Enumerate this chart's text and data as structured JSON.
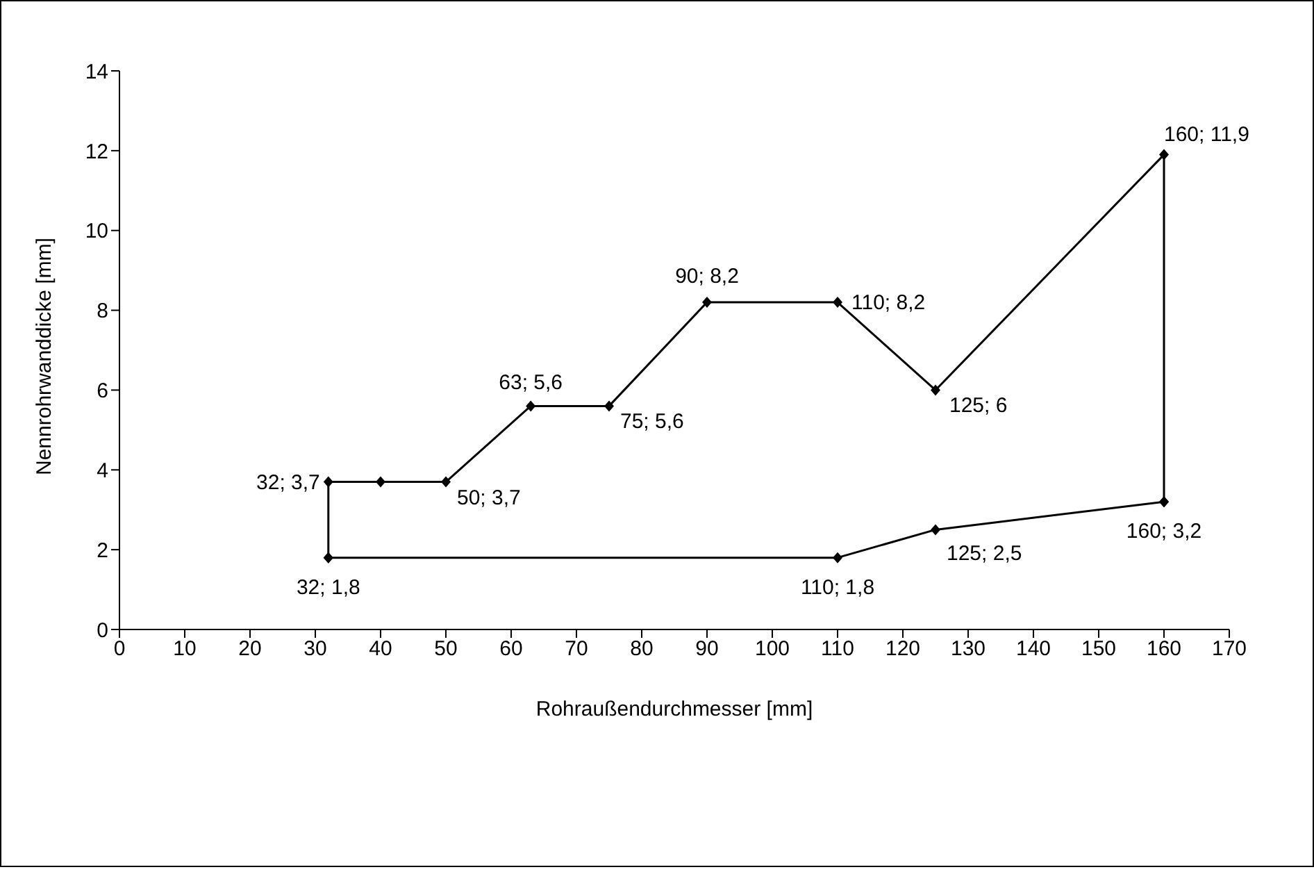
{
  "chart_data": {
    "type": "line",
    "xlabel": "Rohraußendurchmesser [mm]",
    "ylabel": "Nennrohrwanddicke [mm]",
    "marker": "diamond",
    "line_style": "solid",
    "series": [
      {
        "color": "#000000",
        "x": [
          32,
          32,
          40,
          50,
          63,
          75,
          90,
          110,
          125,
          160,
          160
        ],
        "values": [
          1.8,
          3.7,
          3.7,
          3.7,
          5.6,
          5.6,
          8.2,
          8.2,
          6,
          11.9,
          3.2
        ],
        "value_labels": [
          "32; 1,8",
          "32; 3,7",
          null,
          "50; 3,7",
          "63; 5,6",
          "75; 5,6",
          "90; 8,2",
          "110; 8,2",
          "125; 6",
          "160; 11,9",
          "160; 3,2"
        ]
      },
      {
        "color": "#000000",
        "x": [
          32,
          110,
          125,
          160
        ],
        "values": [
          1.8,
          1.8,
          2.5,
          3.2
        ],
        "value_labels": [
          null,
          "110; 1,8",
          "125; 2,5",
          null
        ]
      }
    ],
    "xlim": [
      0,
      170
    ],
    "xticks": [
      0,
      10,
      20,
      30,
      40,
      50,
      60,
      70,
      80,
      90,
      100,
      110,
      120,
      130,
      140,
      150,
      160,
      170
    ],
    "ylim": [
      0,
      14
    ],
    "yticks": [
      0,
      2,
      4,
      6,
      8,
      10,
      12,
      14
    ],
    "grid": false,
    "legend": false
  }
}
